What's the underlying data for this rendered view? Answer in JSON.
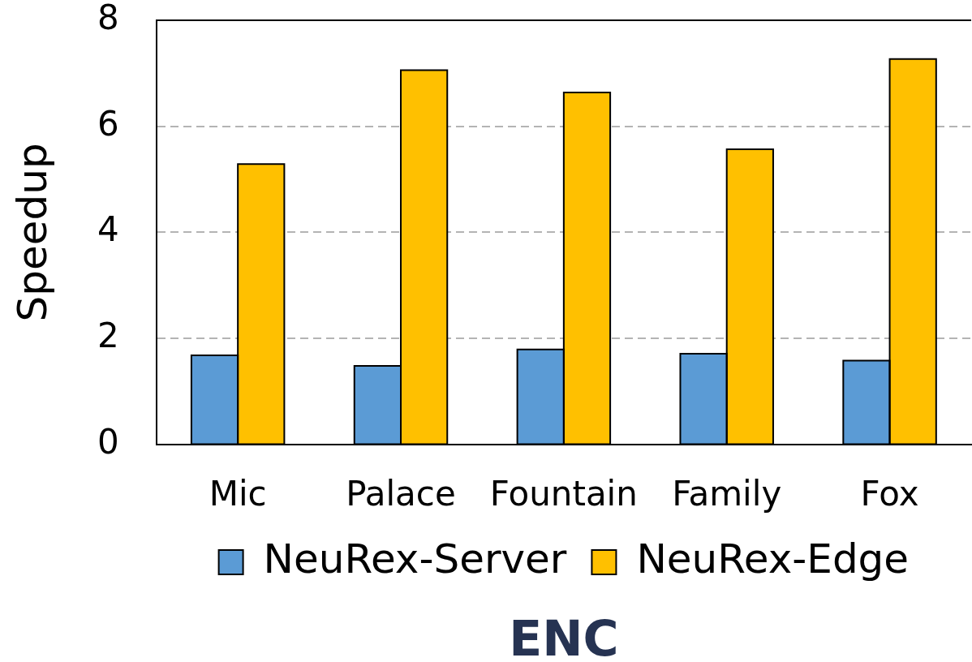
{
  "chart_data": {
    "type": "bar",
    "title": "ENC",
    "ylabel": "Speedup",
    "categories": [
      "Mic",
      "Palace",
      "Fountain",
      "Family",
      "Fox"
    ],
    "series": [
      {
        "name": "NeuRex-Server",
        "color": "#5b9bd5",
        "values": [
          1.68,
          1.48,
          1.79,
          1.71,
          1.58
        ]
      },
      {
        "name": "NeuRex-Edge",
        "color": "#ffc000",
        "values": [
          5.29,
          7.06,
          6.64,
          5.57,
          7.27
        ]
      }
    ],
    "ylim": [
      0,
      8
    ],
    "yticks": [
      0,
      2,
      4,
      6,
      8
    ],
    "grid": "y",
    "legend": "bottom"
  }
}
